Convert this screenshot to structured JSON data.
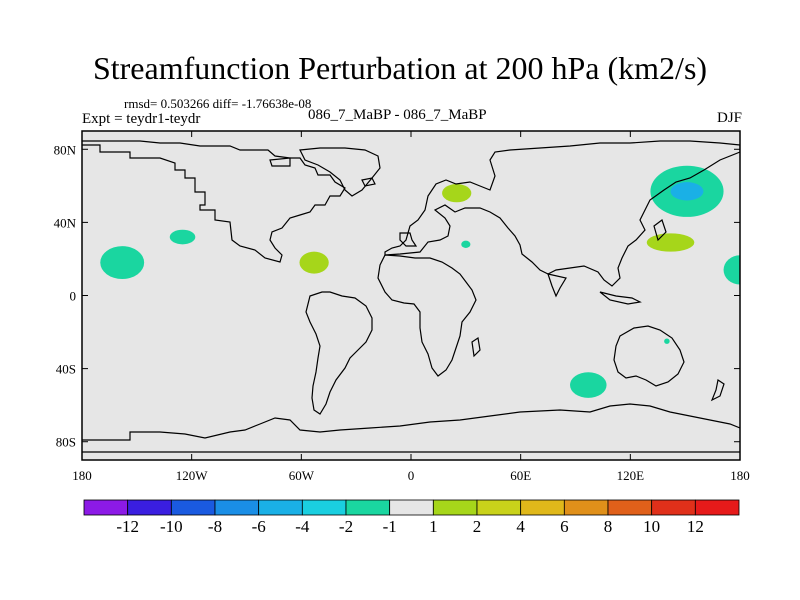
{
  "title": "Streamfunction Perturbation at 200 hPa (km2/s)",
  "stats_line": "rmsd= 0.503266 diff= -1.76638e-08",
  "left_label": "Expt = teydr1-teydr",
  "center_label": "086_7_MaBP - 086_7_MaBP",
  "right_label": "DJF",
  "map": {
    "projection": "cylindrical-equidistant",
    "lon_range": [
      -180,
      180
    ],
    "lat_range": [
      -90,
      90
    ],
    "background_color": "#e6e6e6",
    "lat_tick_labels": [
      "80N",
      "40N",
      "0",
      "40S",
      "80S"
    ],
    "lat_tick_values": [
      80,
      40,
      0,
      -40,
      -80
    ],
    "lon_tick_labels": [
      "180",
      "120W",
      "60W",
      "0",
      "60E",
      "120E",
      "180"
    ],
    "lon_tick_values": [
      -180,
      -120,
      -60,
      0,
      60,
      120,
      180
    ]
  },
  "colorbar": {
    "labels": [
      "-12",
      "-10",
      "-8",
      "-6",
      "-4",
      "-2",
      "-1",
      "1",
      "2",
      "4",
      "6",
      "8",
      "10",
      "12"
    ],
    "colors": [
      "#8c1ae6",
      "#3a1ee0",
      "#1a5ae0",
      "#1a8ee6",
      "#1ab0e6",
      "#1acfe0",
      "#1ad6a0",
      "#e6e6e6",
      "#a6d61a",
      "#c9d21a",
      "#e0b81a",
      "#e0901a",
      "#e0601a",
      "#e0301a",
      "#e61a1a"
    ]
  },
  "contour_patches": [
    {
      "lon": -158,
      "lat": 18,
      "rlon": 12,
      "rlat": 9,
      "color": "#1ad6a0"
    },
    {
      "lon": -125,
      "lat": 32,
      "rlon": 7,
      "rlat": 4,
      "color": "#1ad6a0"
    },
    {
      "lon": -53,
      "lat": 18,
      "rlon": 8,
      "rlat": 6,
      "color": "#a6d61a"
    },
    {
      "lon": 25,
      "lat": 56,
      "rlon": 8,
      "rlat": 5,
      "color": "#a6d61a"
    },
    {
      "lon": 30,
      "lat": 28,
      "rlon": 2.5,
      "rlat": 2,
      "color": "#1ad6a0"
    },
    {
      "lon": 151,
      "lat": 57,
      "rlon": 20,
      "rlat": 14,
      "color": "#1ad6a0"
    },
    {
      "lon": 151,
      "lat": 57,
      "rlon": 9,
      "rlat": 5,
      "color": "#1ab0e6"
    },
    {
      "lon": 142,
      "lat": 29,
      "rlon": 13,
      "rlat": 5,
      "color": "#a6d61a"
    },
    {
      "lon": 180,
      "lat": 14,
      "rlon": 9,
      "rlat": 8,
      "color": "#1ad6a0"
    },
    {
      "lon": 140,
      "lat": -25,
      "rlon": 1.5,
      "rlat": 1.5,
      "color": "#1ad6a0"
    },
    {
      "lon": 97,
      "lat": -49,
      "rlon": 10,
      "rlat": 7,
      "color": "#1ad6a0"
    }
  ]
}
